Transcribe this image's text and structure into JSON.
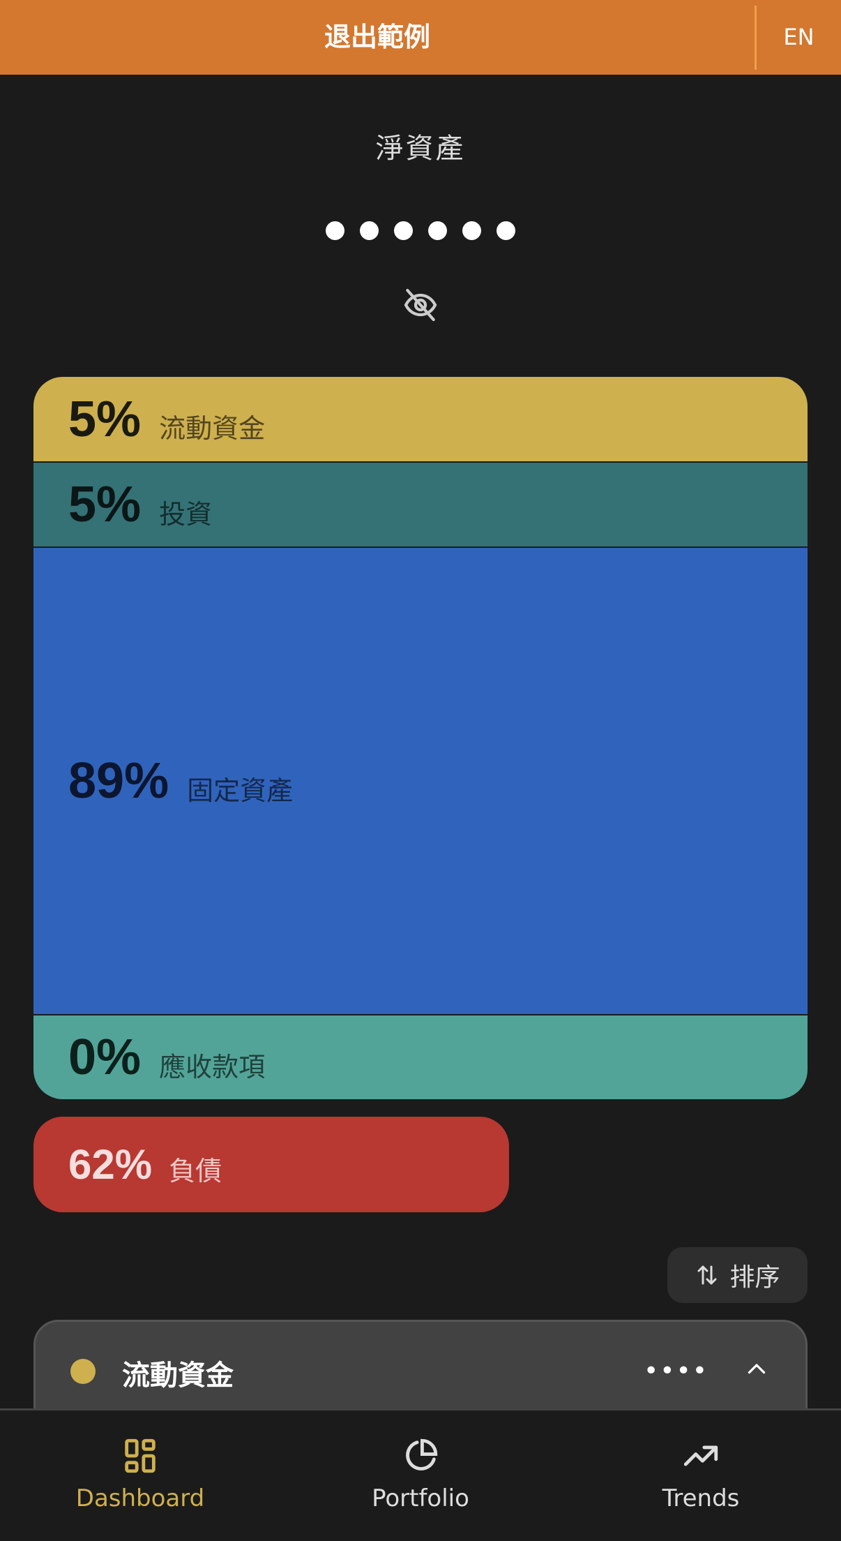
{
  "header": {
    "title": "退出範例",
    "lang_button": "EN",
    "color": "#d4772f"
  },
  "net_worth": {
    "label": "淨資產",
    "masked_value_dots": 6,
    "visibility_icon": "eye-off-icon"
  },
  "allocation": [
    {
      "percent": "5%",
      "label": "流動資金",
      "color": "#cfb04e",
      "share": 5
    },
    {
      "percent": "5%",
      "label": "投資",
      "color": "#347276",
      "share": 5
    },
    {
      "percent": "89%",
      "label": "固定資產",
      "color": "#3064bc",
      "share": 89
    },
    {
      "percent": "0%",
      "label": "應收款項",
      "color": "#52a498",
      "share": 0
    }
  ],
  "liabilities": {
    "percent": "62%",
    "label": "負債",
    "color": "#b83832"
  },
  "sort_button": {
    "label": "排序",
    "icon": "sort-arrows-icon"
  },
  "account_group": {
    "name": "流動資金",
    "color": "#cfb04e",
    "masked_value": "••••",
    "icon": "chevron-up-icon"
  },
  "bottom_nav": [
    {
      "label": "Dashboard",
      "icon": "dashboard-grid-icon",
      "active": true
    },
    {
      "label": "Portfolio",
      "icon": "pie-chart-icon",
      "active": false
    },
    {
      "label": "Trends",
      "icon": "trending-up-icon",
      "active": false
    }
  ]
}
